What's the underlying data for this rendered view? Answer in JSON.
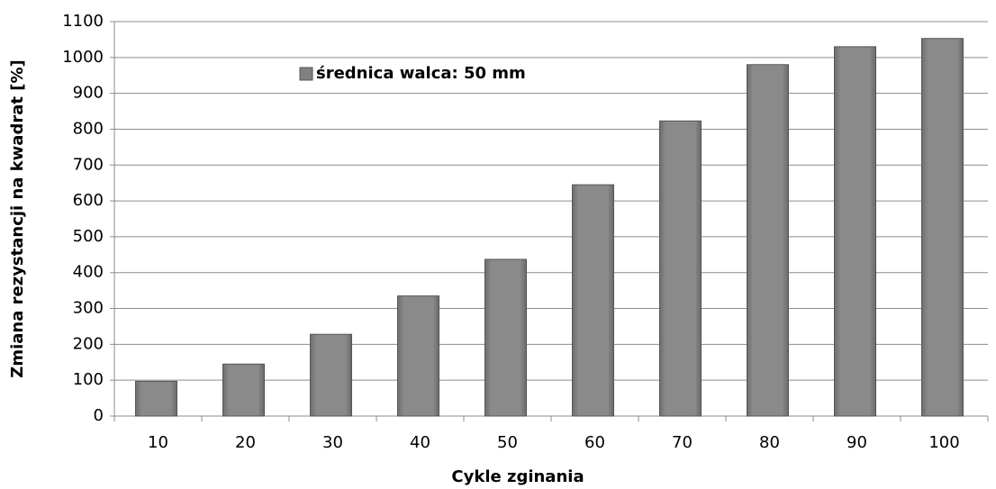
{
  "chart_data": {
    "type": "bar",
    "xlabel": "Cykle zginania",
    "ylabel": "Zmiana rezystancji na kwadrat [%]",
    "categories": [
      "10",
      "20",
      "30",
      "40",
      "50",
      "60",
      "70",
      "80",
      "90",
      "100"
    ],
    "series": [
      {
        "name": "średnica walca: 50 mm",
        "color": "#808080",
        "values": [
          97,
          145,
          228,
          335,
          437,
          645,
          823,
          980,
          1030,
          1053
        ]
      }
    ],
    "ylim": [
      0,
      1100
    ],
    "yticks": [
      0,
      100,
      200,
      300,
      400,
      500,
      600,
      700,
      800,
      900,
      1000,
      1100
    ],
    "grid": true,
    "legend": "upper left"
  }
}
